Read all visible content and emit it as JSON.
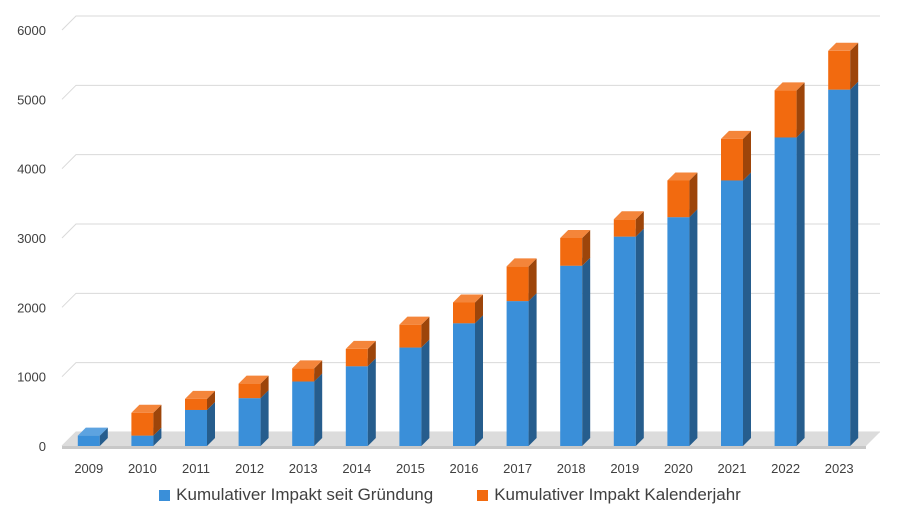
{
  "chart_data": {
    "type": "bar",
    "stacked": true,
    "categories": [
      "2009",
      "2010",
      "2011",
      "2012",
      "2013",
      "2014",
      "2015",
      "2016",
      "2017",
      "2018",
      "2019",
      "2020",
      "2021",
      "2022",
      "2023"
    ],
    "series": [
      {
        "name": "Kumulativer Impakt seit Gründung",
        "color": "#3a8fd9",
        "values": [
          150,
          150,
          520,
          690,
          930,
          1150,
          1420,
          1770,
          2090,
          2600,
          3020,
          3300,
          3830,
          4450,
          5140
        ]
      },
      {
        "name": "Kumulativer Impakt Kalenderjahr",
        "color": "#f26a0f",
        "values": [
          0,
          330,
          160,
          210,
          190,
          250,
          330,
          300,
          500,
          400,
          250,
          530,
          600,
          680,
          560
        ]
      }
    ],
    "yticks": [
      "0",
      "1000",
      "2000",
      "3000",
      "4000",
      "5000",
      "6000"
    ],
    "ylim": [
      0,
      6000
    ],
    "grid": true,
    "legend_position": "bottom"
  }
}
